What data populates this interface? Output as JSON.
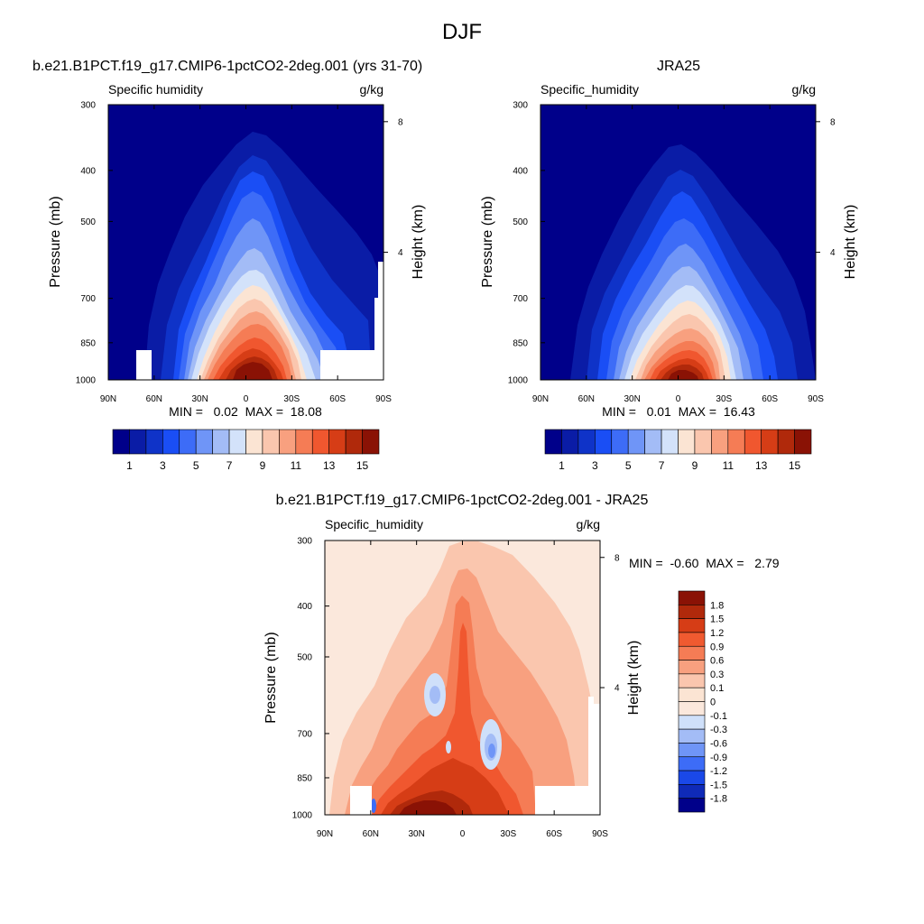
{
  "page": {
    "title": "DJF"
  },
  "colors": {
    "seq": [
      "#00008a",
      "#0a1ca6",
      "#0f33c8",
      "#1a4ef5",
      "#3d6cf7",
      "#6f95f7",
      "#a3bcf6",
      "#d3e2fa",
      "#fbe4d3",
      "#fac6ae",
      "#f8a07f",
      "#f57c55",
      "#f0572f",
      "#d63d16",
      "#b0290b",
      "#8a1205"
    ],
    "div": [
      "#00008a",
      "#0f2ab8",
      "#1a48e8",
      "#3d6cf7",
      "#6f95f7",
      "#a3bcf6",
      "#cfe0fa",
      "#fbe8dc",
      "#fbe4d3",
      "#fac6ae",
      "#f8a07f",
      "#f57c55",
      "#f05a30",
      "#d63d16",
      "#b0290b",
      "#8a1205"
    ]
  },
  "chart_data": [
    {
      "type": "heatmap",
      "title": "b.e21.B1PCT.f19_g17.CMIP6-1pctCO2-2deg.001 (yrs 31-70)",
      "variable": "Specific humidity",
      "units": "g/kg",
      "ylabel": "Pressure (mb)",
      "y2label": "Height (km)",
      "x_ticks": [
        "90N",
        "60N",
        "30N",
        "0",
        "30S",
        "60S",
        "90S"
      ],
      "y_ticks": [
        "300",
        "400",
        "500",
        "700",
        "850",
        "1000"
      ],
      "y2_ticks": [
        "8",
        "4"
      ],
      "min_max_text": "MIN =   0.02  MAX =  18.08",
      "min": 0.02,
      "max": 18.08,
      "colorbar_labels": [
        "1",
        "3",
        "5",
        "7",
        "9",
        "11",
        "13",
        "15"
      ]
    },
    {
      "type": "heatmap",
      "title": "JRA25",
      "variable": "Specific_humidity",
      "units": "g/kg",
      "ylabel": "Pressure (mb)",
      "y2label": "Height (km)",
      "x_ticks": [
        "90N",
        "60N",
        "30N",
        "0",
        "30S",
        "60S",
        "90S"
      ],
      "y_ticks": [
        "300",
        "400",
        "500",
        "700",
        "850",
        "1000"
      ],
      "y2_ticks": [
        "8",
        "4"
      ],
      "min_max_text": "MIN =   0.01  MAX =  16.43",
      "min": 0.01,
      "max": 16.43,
      "colorbar_labels": [
        "1",
        "3",
        "5",
        "7",
        "9",
        "11",
        "13",
        "15"
      ]
    },
    {
      "type": "heatmap",
      "title": "b.e21.B1PCT.f19_g17.CMIP6-1pctCO2-2deg.001 - JRA25",
      "variable": "Specific_humidity",
      "units": "g/kg",
      "ylabel": "Pressure (mb)",
      "y2label": "Height (km)",
      "x_ticks": [
        "90N",
        "60N",
        "30N",
        "0",
        "30S",
        "60S",
        "90S"
      ],
      "y_ticks": [
        "300",
        "400",
        "500",
        "700",
        "850",
        "1000"
      ],
      "y2_ticks": [
        "8",
        "4"
      ],
      "min_max_text": "MIN =  -0.60  MAX =   2.79",
      "min": -0.6,
      "max": 2.79,
      "colorbar_labels": [
        "1.8",
        "1.5",
        "1.2",
        "0.9",
        "0.6",
        "0.3",
        "0.1",
        "0",
        "-0.1",
        "-0.3",
        "-0.6",
        "-0.9",
        "-1.2",
        "-1.5",
        "-1.8"
      ]
    }
  ]
}
